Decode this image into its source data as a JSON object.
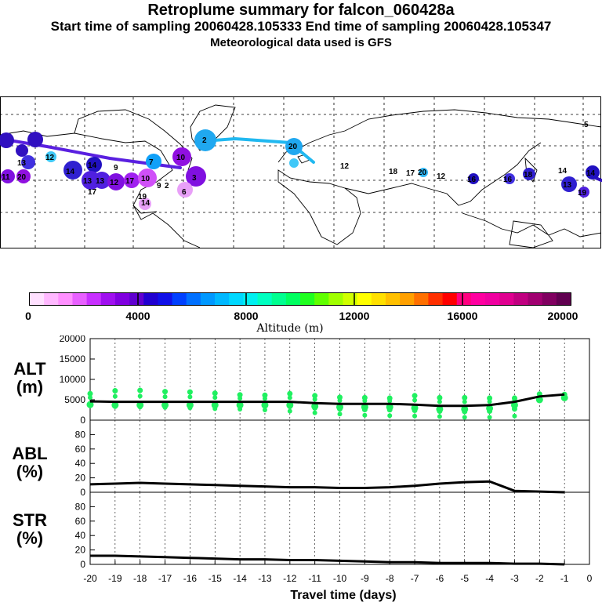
{
  "header": {
    "title": "Retroplume summary for falcon_060428a",
    "sampling_times": "Start time of sampling 20060428.105333     End time of sampling 20060428.105347",
    "met_data": "Meteorological data used is GFS"
  },
  "colorbar": {
    "ticks": [
      "0",
      "4000",
      "8000",
      "12000",
      "16000",
      "20000"
    ],
    "label": "Altitude (m)",
    "colors": [
      "#ffe0ff",
      "#ffb8ff",
      "#ff90ff",
      "#e860ff",
      "#c830ff",
      "#a010f0",
      "#8000e0",
      "#6000d0",
      "#2000d0",
      "#1010e8",
      "#0040ff",
      "#0070ff",
      "#0098ff",
      "#00b8ff",
      "#00d8ff",
      "#00f0f0",
      "#00ffc0",
      "#00ff90",
      "#00ff60",
      "#20ff20",
      "#60ff00",
      "#a0ff00",
      "#d0ff00",
      "#ffff00",
      "#ffe000",
      "#ffc000",
      "#ffa000",
      "#ff7000",
      "#ff3000",
      "#ff0000",
      "#ff0080",
      "#ff00a0",
      "#f000a0",
      "#e00090",
      "#c00080",
      "#a00070",
      "#800060",
      "#600050"
    ]
  },
  "map_labels": [
    "11",
    "20",
    "13",
    "12",
    "14",
    "14",
    "13",
    "13",
    "9",
    "12",
    "7",
    "10",
    "17",
    "9",
    "10",
    "6",
    "14",
    "3",
    "2",
    "20",
    "12",
    "18",
    "17",
    "20",
    "12",
    "16",
    "16",
    "18",
    "14",
    "14",
    "13",
    "19",
    "17",
    "19",
    "5",
    "2"
  ],
  "chart_data": [
    {
      "type": "line",
      "panel": "ALT",
      "ylabel": "ALT\n(m)",
      "ylabel_lines": [
        "ALT",
        "(m)"
      ],
      "ylim": [
        0,
        20000
      ],
      "yticks": [
        "0",
        "5000",
        "10000",
        "15000",
        "20000"
      ],
      "x": [
        -20,
        -19,
        -18,
        -17,
        -16,
        -15,
        -14,
        -13,
        -12,
        -11,
        -10,
        -9,
        -8,
        -7,
        -6,
        -5,
        -4,
        -3,
        -2,
        -1
      ],
      "series": [
        {
          "name": "median altitude",
          "values": [
            4600,
            4500,
            4500,
            4500,
            4500,
            4500,
            4500,
            4500,
            4500,
            4200,
            4000,
            4000,
            4000,
            3800,
            3500,
            3500,
            3700,
            4500,
            5800,
            6300
          ]
        },
        {
          "name": "altitude distribution (upper)",
          "values": [
            6500,
            7200,
            7300,
            7000,
            6900,
            6600,
            6200,
            6100,
            6500,
            6000,
            5600,
            5500,
            5400,
            6000,
            5500,
            5500,
            5400,
            5400,
            6400,
            6300
          ]
        },
        {
          "name": "altitude distribution (lower)",
          "values": [
            3500,
            3300,
            3200,
            3100,
            3000,
            2800,
            2700,
            2500,
            2200,
            1800,
            1500,
            1200,
            1100,
            1000,
            900,
            700,
            700,
            1000,
            5400,
            6000
          ]
        }
      ],
      "xlim": [
        -20,
        0
      ]
    },
    {
      "type": "line",
      "panel": "ABL",
      "ylabel_lines": [
        "ABL",
        "(%)"
      ],
      "ylim": [
        0,
        100
      ],
      "yticks": [
        "0",
        "20",
        "40",
        "60",
        "80"
      ],
      "x": [
        -20,
        -19,
        -18,
        -17,
        -16,
        -15,
        -14,
        -13,
        -12,
        -11,
        -10,
        -9,
        -8,
        -7,
        -6,
        -5,
        -4,
        -3,
        -2,
        -1
      ],
      "series": [
        {
          "name": "fraction in ABL",
          "values": [
            11,
            12,
            13,
            12,
            11,
            10,
            9,
            8,
            7,
            7,
            6,
            6,
            7,
            9,
            12,
            14,
            15,
            2,
            1,
            0
          ]
        }
      ],
      "xlim": [
        -20,
        0
      ]
    },
    {
      "type": "line",
      "panel": "STR",
      "ylabel_lines": [
        "STR",
        "(%)"
      ],
      "ylim": [
        0,
        100
      ],
      "yticks": [
        "0",
        "20",
        "40",
        "60",
        "80"
      ],
      "x": [
        -20,
        -19,
        -18,
        -17,
        -16,
        -15,
        -14,
        -13,
        -12,
        -11,
        -10,
        -9,
        -8,
        -7,
        -6,
        -5,
        -4,
        -3,
        -2,
        -1
      ],
      "series": [
        {
          "name": "fraction in stratosphere",
          "values": [
            12,
            12,
            11,
            10,
            9,
            8,
            7,
            7,
            6,
            6,
            5,
            4,
            3,
            3,
            2,
            2,
            2,
            1,
            1,
            0
          ]
        }
      ],
      "xlim": [
        -20,
        0
      ]
    }
  ],
  "xaxis": {
    "ticks": [
      "-20",
      "-19",
      "-18",
      "-17",
      "-16",
      "-15",
      "-14",
      "-13",
      "-12",
      "-11",
      "-10",
      "-9",
      "-8",
      "-7",
      "-6",
      "-5",
      "-4",
      "-3",
      "-2",
      "-1",
      "0"
    ],
    "label": "Travel time (days)"
  }
}
